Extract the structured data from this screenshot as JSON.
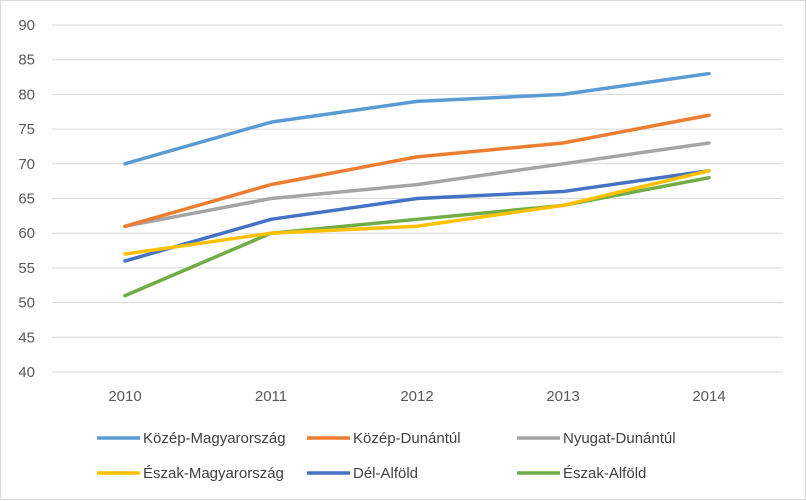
{
  "chart_data": {
    "type": "line",
    "title": "",
    "xlabel": "",
    "ylabel": "",
    "categories": [
      "2010",
      "2011",
      "2012",
      "2013",
      "2014"
    ],
    "ylim": [
      40,
      90
    ],
    "ytick_step": 5,
    "grid": "horizontal",
    "legend_position": "bottom",
    "series": [
      {
        "name": "Közép-Magyarország",
        "color": "#5B9BD5",
        "values": [
          70,
          76,
          79,
          80,
          83
        ]
      },
      {
        "name": "Közép-Dunántúl",
        "color": "#ED7D31",
        "values": [
          61,
          67,
          71,
          73,
          77
        ]
      },
      {
        "name": "Nyugat-Dunántúl",
        "color": "#A5A5A5",
        "values": [
          61,
          65,
          67,
          70,
          73
        ]
      },
      {
        "name": "Észak-Magyarország",
        "color": "#FFC000",
        "values": [
          57,
          60,
          61,
          64,
          69
        ]
      },
      {
        "name": "Dél-Alföld",
        "color": "#4472C4",
        "values": [
          56,
          62,
          65,
          66,
          69
        ]
      },
      {
        "name": "Észak-Alföld",
        "color": "#70AD47",
        "values": [
          51,
          60,
          62,
          64,
          68
        ]
      }
    ]
  }
}
